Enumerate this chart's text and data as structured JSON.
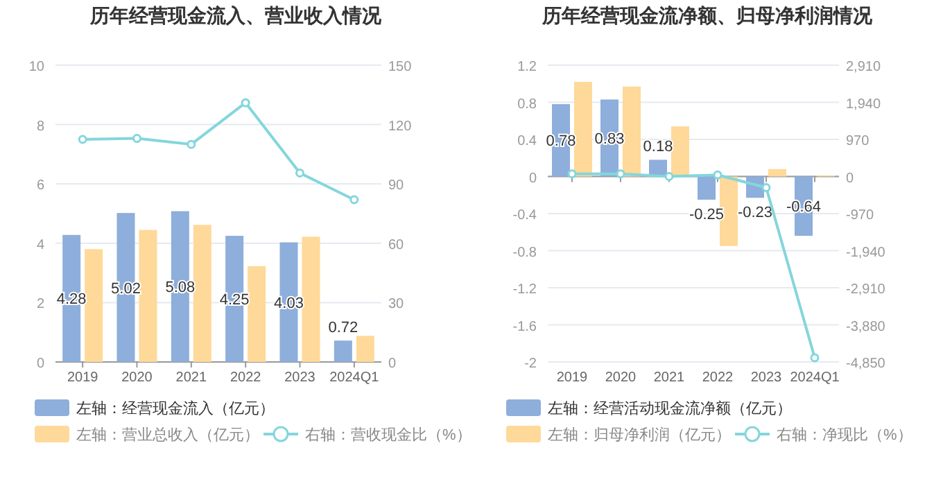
{
  "chart_data": [
    {
      "type": "bar",
      "title": "历年经营现金流入、营业收入情况",
      "categories": [
        "2019",
        "2020",
        "2021",
        "2022",
        "2023",
        "2024Q1"
      ],
      "ylim": [
        0,
        10
      ],
      "yticks": [
        0,
        2,
        4,
        6,
        8,
        10
      ],
      "y2lim": [
        0,
        150
      ],
      "y2ticks": [
        0,
        30,
        60,
        90,
        120,
        150
      ],
      "grid": "y",
      "legend": "bottom",
      "series": [
        {
          "name": "左轴：经营现金流入（亿元）",
          "color": "#8eaedb",
          "values": [
            4.28,
            5.02,
            5.08,
            4.25,
            4.03,
            0.72
          ],
          "value_labels": [
            "4.28",
            "5.02",
            "5.08",
            "4.25",
            "4.03",
            "0.72"
          ]
        },
        {
          "name": "左轴：营业总收入（亿元）",
          "color": "#ffd999",
          "values": [
            3.8,
            4.45,
            4.62,
            3.23,
            4.22,
            0.88
          ]
        },
        {
          "name": "右轴：营收现金比（%）",
          "type": "line",
          "axis": "y2",
          "color": "#84d6dc",
          "marker": "circle",
          "values": [
            112.5,
            113,
            110,
            131,
            95.5,
            82
          ]
        }
      ]
    },
    {
      "type": "bar",
      "title": "历年经营现金流净额、归母净利润情况",
      "categories": [
        "2019",
        "2020",
        "2021",
        "2022",
        "2023",
        "2024Q1"
      ],
      "ylim": [
        -2,
        1.2
      ],
      "yticks": [
        -2,
        -1.6,
        -1.2,
        -0.8,
        -0.4,
        0,
        0.4,
        0.8,
        1.2
      ],
      "y2lim": [
        -4850,
        2910
      ],
      "y2ticks": [
        {
          "value": -4850,
          "label": "-4,850"
        },
        {
          "value": -3880,
          "label": "-3,880"
        },
        {
          "value": -2910,
          "label": "-2,910"
        },
        {
          "value": -1940,
          "label": "-1,940"
        },
        {
          "value": -970,
          "label": "-970"
        },
        0,
        970,
        {
          "value": 1940,
          "label": "1,940"
        },
        {
          "value": 2910,
          "label": "2,910"
        }
      ],
      "grid": "y",
      "legend": "bottom",
      "series": [
        {
          "name": "左轴：经营活动现金流净额（亿元）",
          "color": "#8eaedb",
          "values": [
            0.78,
            0.83,
            0.18,
            -0.25,
            -0.23,
            -0.64
          ],
          "value_labels": [
            "0.78",
            "0.83",
            "0.18",
            "-0.25",
            "-0.23",
            "-0.64"
          ]
        },
        {
          "name": "左轴：归母净利润（亿元）",
          "color": "#ffd999",
          "values": [
            1.02,
            0.97,
            0.54,
            -0.75,
            0.08,
            0.01
          ]
        },
        {
          "name": "右轴：净现比（%）",
          "type": "line",
          "axis": "y2",
          "color": "#84d6dc",
          "marker": "circle",
          "values": [
            70,
            70,
            0,
            40,
            -290,
            -4740
          ]
        }
      ]
    }
  ]
}
